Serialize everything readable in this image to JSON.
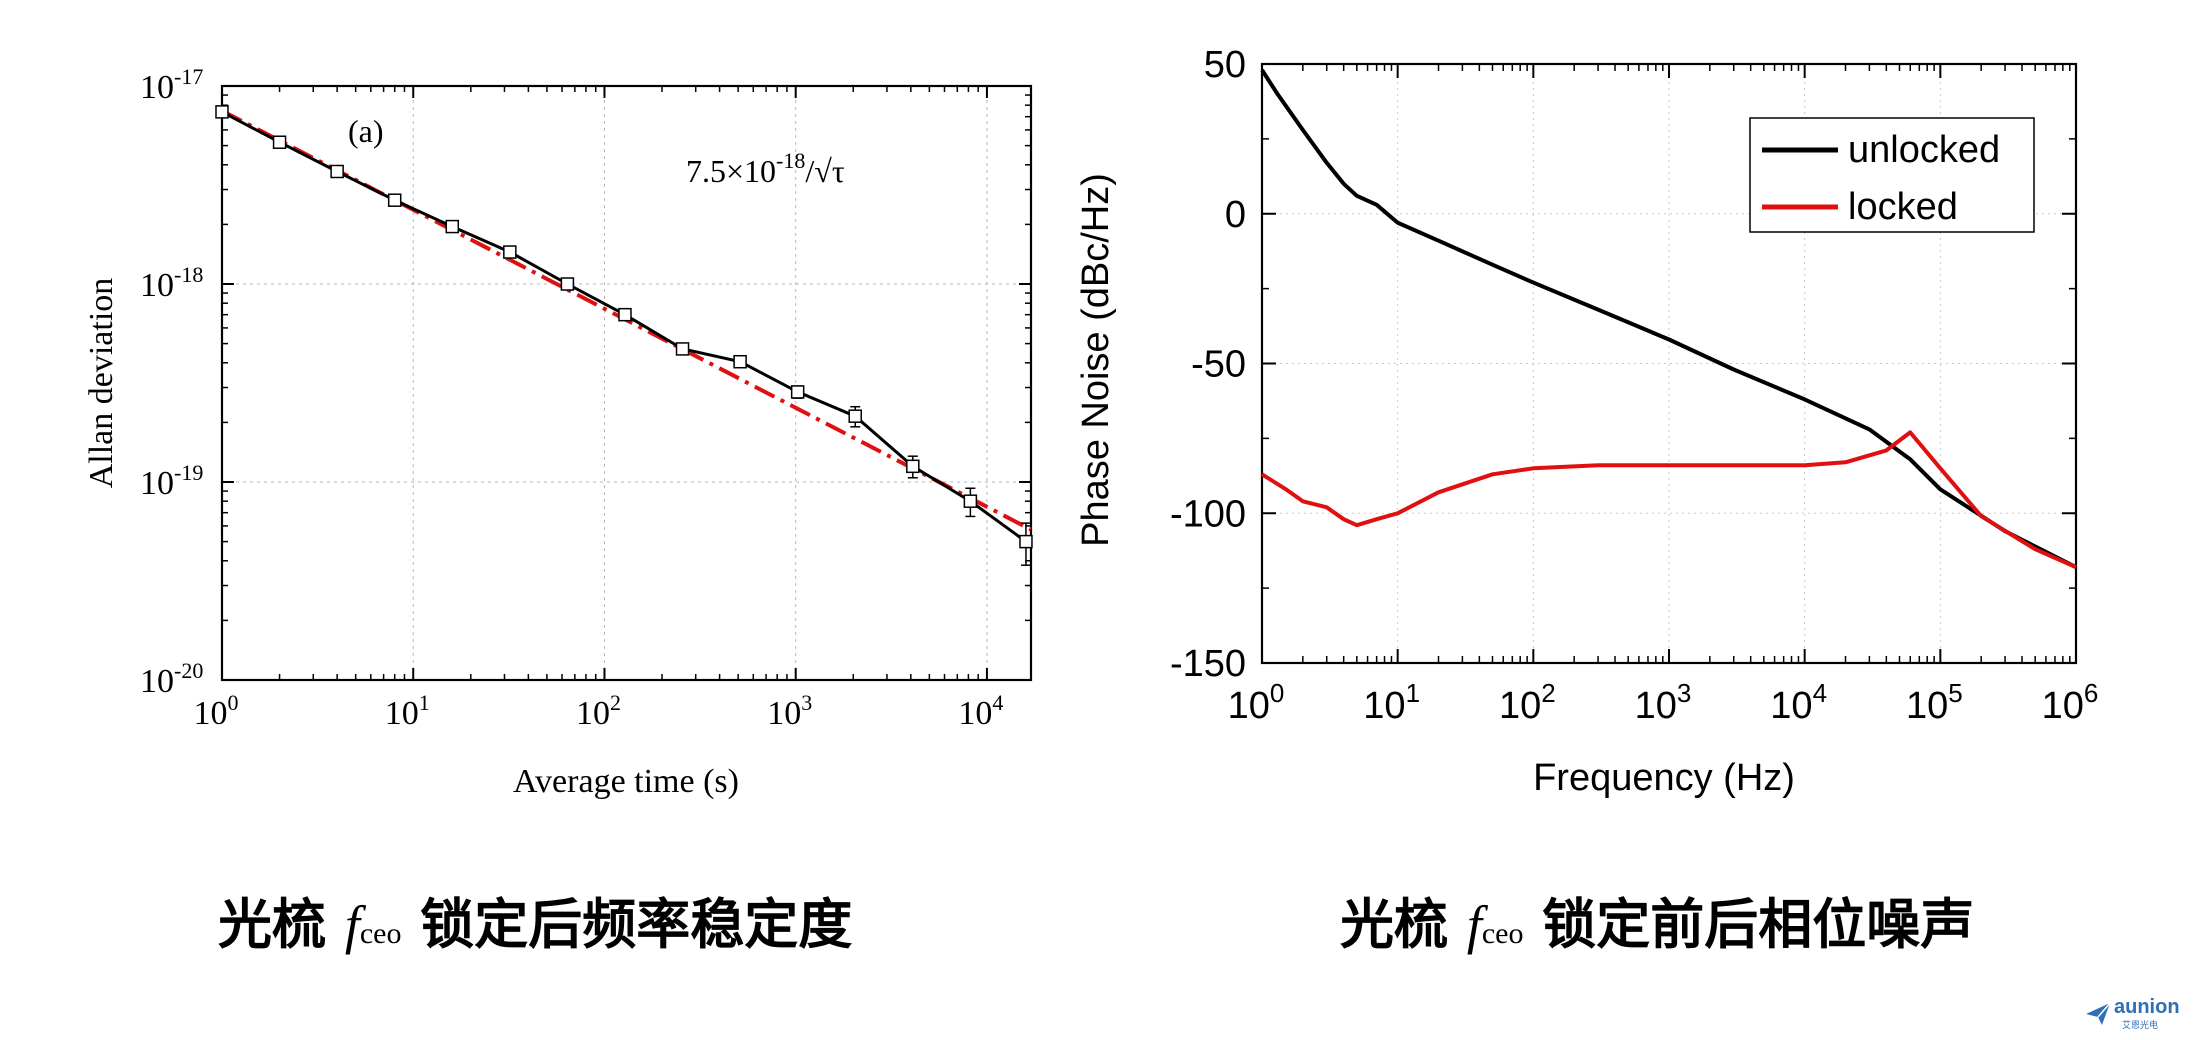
{
  "chart_data": [
    {
      "type": "line",
      "panel_label": "(a)",
      "xlabel": "Average time (s)",
      "ylabel": "Allan deviation",
      "x_scale": "log",
      "y_scale": "log",
      "xlim": [
        1,
        17000
      ],
      "ylim": [
        1e-20,
        1e-17
      ],
      "x_ticks": [
        {
          "value": 1,
          "base": "10",
          "exp": "0"
        },
        {
          "value": 10,
          "base": "10",
          "exp": "1"
        },
        {
          "value": 100,
          "base": "10",
          "exp": "2"
        },
        {
          "value": 1000,
          "base": "10",
          "exp": "3"
        },
        {
          "value": 10000,
          "base": "10",
          "exp": "4"
        }
      ],
      "y_ticks": [
        {
          "value": 1e-17,
          "base": "10",
          "exp": "-17"
        },
        {
          "value": 1e-18,
          "base": "10",
          "exp": "-18"
        },
        {
          "value": 1e-19,
          "base": "10",
          "exp": "-19"
        },
        {
          "value": 1e-20,
          "base": "10",
          "exp": "-20"
        }
      ],
      "grid": true,
      "annotation": {
        "prefix": "7.5×10",
        "exp": "-18",
        "suffix": "/√τ"
      },
      "series": [
        {
          "color": "#000000",
          "style": "solid-with-square-markers-and-errorbars",
          "x": [
            1,
            2,
            4,
            8,
            16,
            32,
            64,
            128,
            256,
            512,
            1024,
            2048,
            4096,
            8192,
            16000
          ],
          "y": [
            7.4e-18,
            5.2e-18,
            3.7e-18,
            2.65e-18,
            1.95e-18,
            1.45e-18,
            1e-18,
            7e-19,
            4.7e-19,
            4.05e-19,
            2.85e-19,
            2.15e-19,
            1.2e-19,
            8e-20,
            5e-20
          ],
          "err": [
            1.5e-19,
            1.2e-19,
            1e-19,
            7e-20,
            5e-20,
            6e-20,
            4e-20,
            3e-20,
            2e-20,
            2e-20,
            2e-20,
            2.5e-20,
            1.5e-20,
            1.3e-20,
            1.2e-20
          ]
        },
        {
          "color": "#e01010",
          "style": "dash-dot",
          "fit_coefficient": 7.5e-18,
          "x": [
            1,
            17000
          ],
          "y": [
            7.5e-18,
            5.75e-20
          ]
        }
      ]
    },
    {
      "type": "line",
      "xlabel": "Frequency (Hz)",
      "ylabel": "Phase Noise (dBc/Hz)",
      "x_scale": "log",
      "xlim": [
        1,
        1000000
      ],
      "ylim": [
        -150,
        50
      ],
      "x_ticks": [
        {
          "value": 1,
          "base": "10",
          "exp": "0"
        },
        {
          "value": 10,
          "base": "10",
          "exp": "1"
        },
        {
          "value": 100,
          "base": "10",
          "exp": "2"
        },
        {
          "value": 1000,
          "base": "10",
          "exp": "3"
        },
        {
          "value": 10000,
          "base": "10",
          "exp": "4"
        },
        {
          "value": 100000,
          "base": "10",
          "exp": "5"
        },
        {
          "value": 1000000,
          "base": "10",
          "exp": "6"
        }
      ],
      "y_ticks": [
        "50",
        "0",
        "-50",
        "-100",
        "-150"
      ],
      "grid": true,
      "legend_position": "top-right",
      "series": [
        {
          "name": "unlocked",
          "color": "#000000",
          "x": [
            1,
            1.3,
            2,
            3,
            4,
            5,
            7,
            10,
            20,
            50,
            100,
            300,
            1000,
            3000,
            10000,
            30000,
            60000,
            100000,
            300000,
            1000000
          ],
          "y": [
            48,
            40,
            28,
            17,
            10,
            6,
            3,
            -3,
            -9,
            -17,
            -23,
            -32,
            -42,
            -52,
            -62,
            -72,
            -82,
            -92,
            -106,
            -118
          ]
        },
        {
          "name": "locked",
          "color": "#e01010",
          "x": [
            1,
            1.5,
            2,
            3,
            4,
            5,
            7,
            10,
            20,
            50,
            100,
            300,
            1000,
            3000,
            10000,
            20000,
            40000,
            60000,
            100000,
            200000,
            500000,
            1000000
          ],
          "y": [
            -87,
            -92,
            -96,
            -98,
            -102,
            -104,
            -102,
            -100,
            -93,
            -87,
            -85,
            -84,
            -84,
            -84,
            -84,
            -83,
            -79,
            -73,
            -85,
            -101,
            -112,
            -118
          ]
        }
      ]
    }
  ],
  "captions": {
    "left": {
      "pre": "光梳 ",
      "f": "f",
      "sub": "ceo",
      "post": " 锁定后频率稳定度"
    },
    "right": {
      "pre": "光梳 ",
      "f": "f",
      "sub": "ceo",
      "post": " 锁定前后相位噪声"
    }
  },
  "brand": {
    "name": "aunion",
    "sub": "艾恩光电",
    "color": "#2f6fb5"
  }
}
